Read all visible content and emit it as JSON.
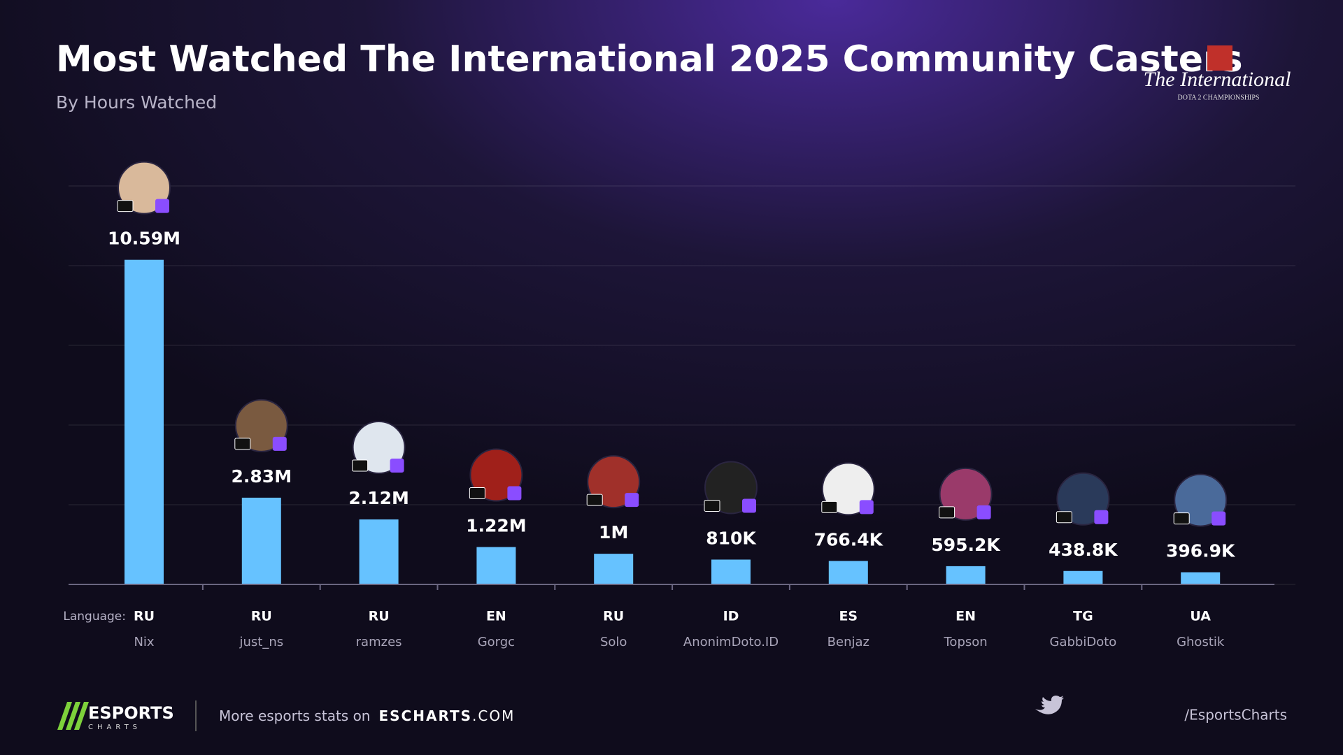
{
  "chart_data": {
    "type": "bar",
    "title": "Most Watched The International 2025 Community Casters",
    "subtitle": "By Hours Watched",
    "language_label": "Language:",
    "categories": [
      "Nix",
      "just_ns",
      "ramzes",
      "Gorgc",
      "Solo",
      "AnonimDoto.ID",
      "Benjaz",
      "Topson",
      "GabbiDoto",
      "Ghostik"
    ],
    "languages": [
      "RU",
      "RU",
      "RU",
      "EN",
      "RU",
      "ID",
      "ES",
      "EN",
      "TG",
      "UA"
    ],
    "values": [
      10590000,
      2830000,
      2120000,
      1220000,
      1000000,
      810000,
      766400,
      595200,
      438800,
      396900
    ],
    "value_labels": [
      "10.59M",
      "2.83M",
      "2.12M",
      "1.22M",
      "1M",
      "810K",
      "766.4K",
      "595.2K",
      "438.8K",
      "396.9K"
    ],
    "color": "#66c2ff",
    "ylim": [
      0,
      13000000
    ],
    "yticks": [
      0,
      2600000,
      5200000,
      7800000,
      10400000,
      13000000
    ],
    "grid": true
  },
  "logo": {
    "line1": "The International",
    "line2": "DOTA 2 CHAMPIONSHIPS"
  },
  "footer": {
    "brand": "ESPORTS",
    "brand_sub": "CHARTS",
    "text": "More esports stats on",
    "site": "ESCHARTS",
    "site_suffix": ".COM",
    "handle": "/EsportsCharts"
  }
}
